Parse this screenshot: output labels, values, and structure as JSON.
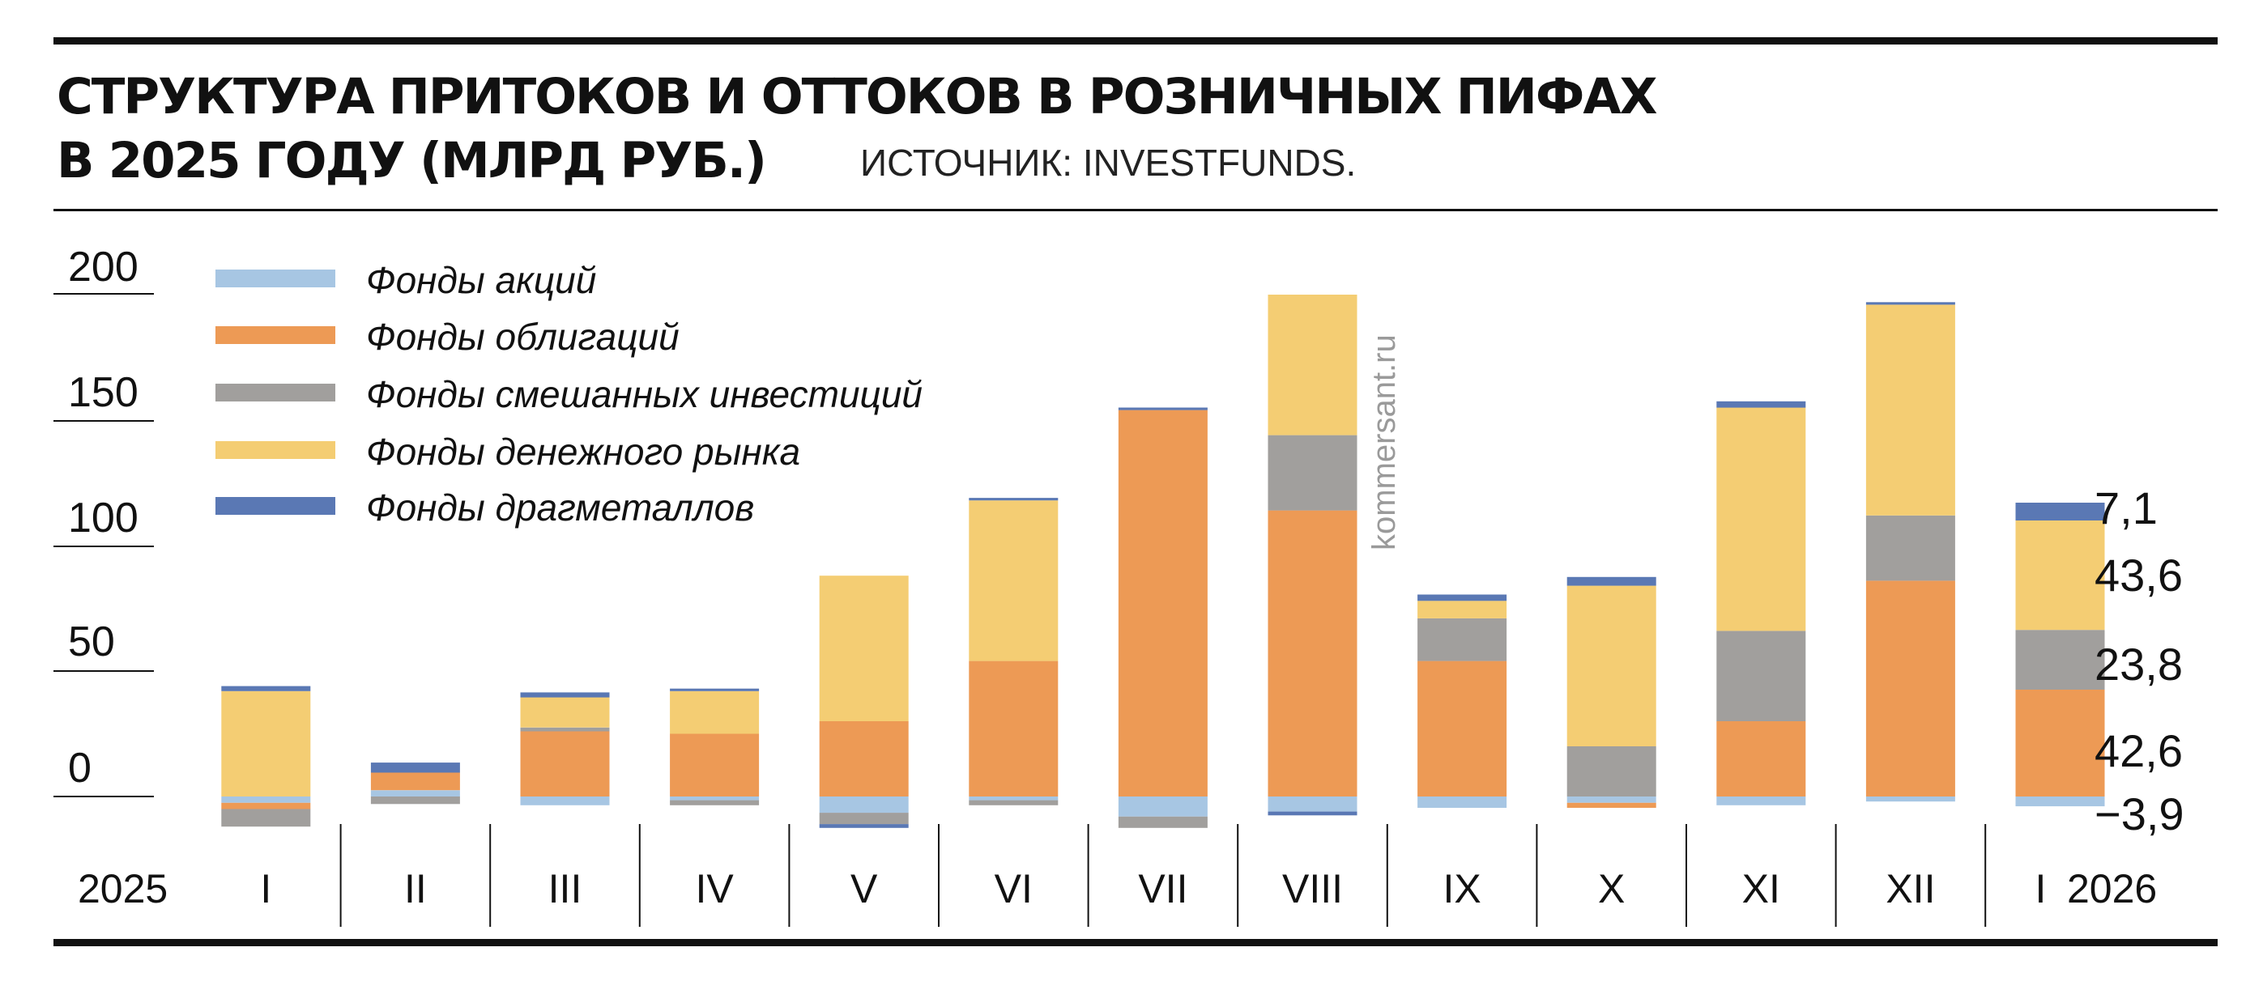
{
  "header": {
    "title_line1": "СТРУКТУРА ПРИТОКОВ И ОТТОКОВ В РОЗНИЧНЫХ ПИФАХ",
    "title_line2": "В 2025 ГОДУ (МЛРД РУБ.)",
    "source": "ИСТОЧНИК: INVESTFUNDS."
  },
  "watermark": "kommersant.ru",
  "colors": {
    "equity": "#a7c6e3",
    "bonds": "#ed9a55",
    "mixed": "#a19f9d",
    "money_market": "#f4cd73",
    "precious_metals": "#5a78b4"
  },
  "chart_data": {
    "type": "bar",
    "stacked": true,
    "title": "СТРУКТУРА ПРИТОКОВ И ОТТОКОВ В РОЗНИЧНЫХ ПИФАХ В 2025 ГОДУ (МЛРД РУБ.)",
    "xlabel": "",
    "ylabel": "",
    "ylim": [
      -10,
      200
    ],
    "yticks": [
      "200",
      "150",
      "100",
      "50",
      "0"
    ],
    "year_start_label": "2025",
    "year_end_label": "2026",
    "categories": [
      "I",
      "II",
      "III",
      "IV",
      "V",
      "VI",
      "VII",
      "VIII",
      "IX",
      "X",
      "XI",
      "XII",
      "I"
    ],
    "series": [
      {
        "name": "Фонды акций",
        "key": "equity",
        "values": [
          -2.5,
          2.5,
          -3.5,
          -1.5,
          -6.5,
          -1.5,
          -8.0,
          -6.0,
          -4.5,
          -2.5,
          -3.5,
          -2.0,
          -3.9
        ]
      },
      {
        "name": "Фонды облигаций",
        "key": "bonds",
        "values": [
          -2.5,
          7.0,
          26.0,
          25.0,
          30.0,
          54.0,
          154.0,
          114.0,
          54.0,
          -2.0,
          30.0,
          86.0,
          42.6
        ]
      },
      {
        "name": "Фонды смешанных инвестиций",
        "key": "mixed",
        "values": [
          -7.0,
          -3.0,
          1.5,
          -2.0,
          -4.5,
          -2.0,
          -4.5,
          30.0,
          17.0,
          20.0,
          36.0,
          26.0,
          23.8
        ]
      },
      {
        "name": "Фонды денежного рынка",
        "key": "money_market",
        "values": [
          42.0,
          0.0,
          12.0,
          17.0,
          58.0,
          64.0,
          0.0,
          56.0,
          7.0,
          64.0,
          89.0,
          84.0,
          43.6
        ]
      },
      {
        "name": "Фонды драгметаллов",
        "key": "precious_metals",
        "values": [
          2.0,
          4.0,
          2.0,
          1.0,
          -1.5,
          1.0,
          1.0,
          -1.5,
          2.5,
          3.5,
          2.5,
          1.0,
          7.1
        ]
      }
    ],
    "annotations": [
      "7,1",
      "43,6",
      "23,8",
      "42,6",
      "−3,9"
    ]
  }
}
